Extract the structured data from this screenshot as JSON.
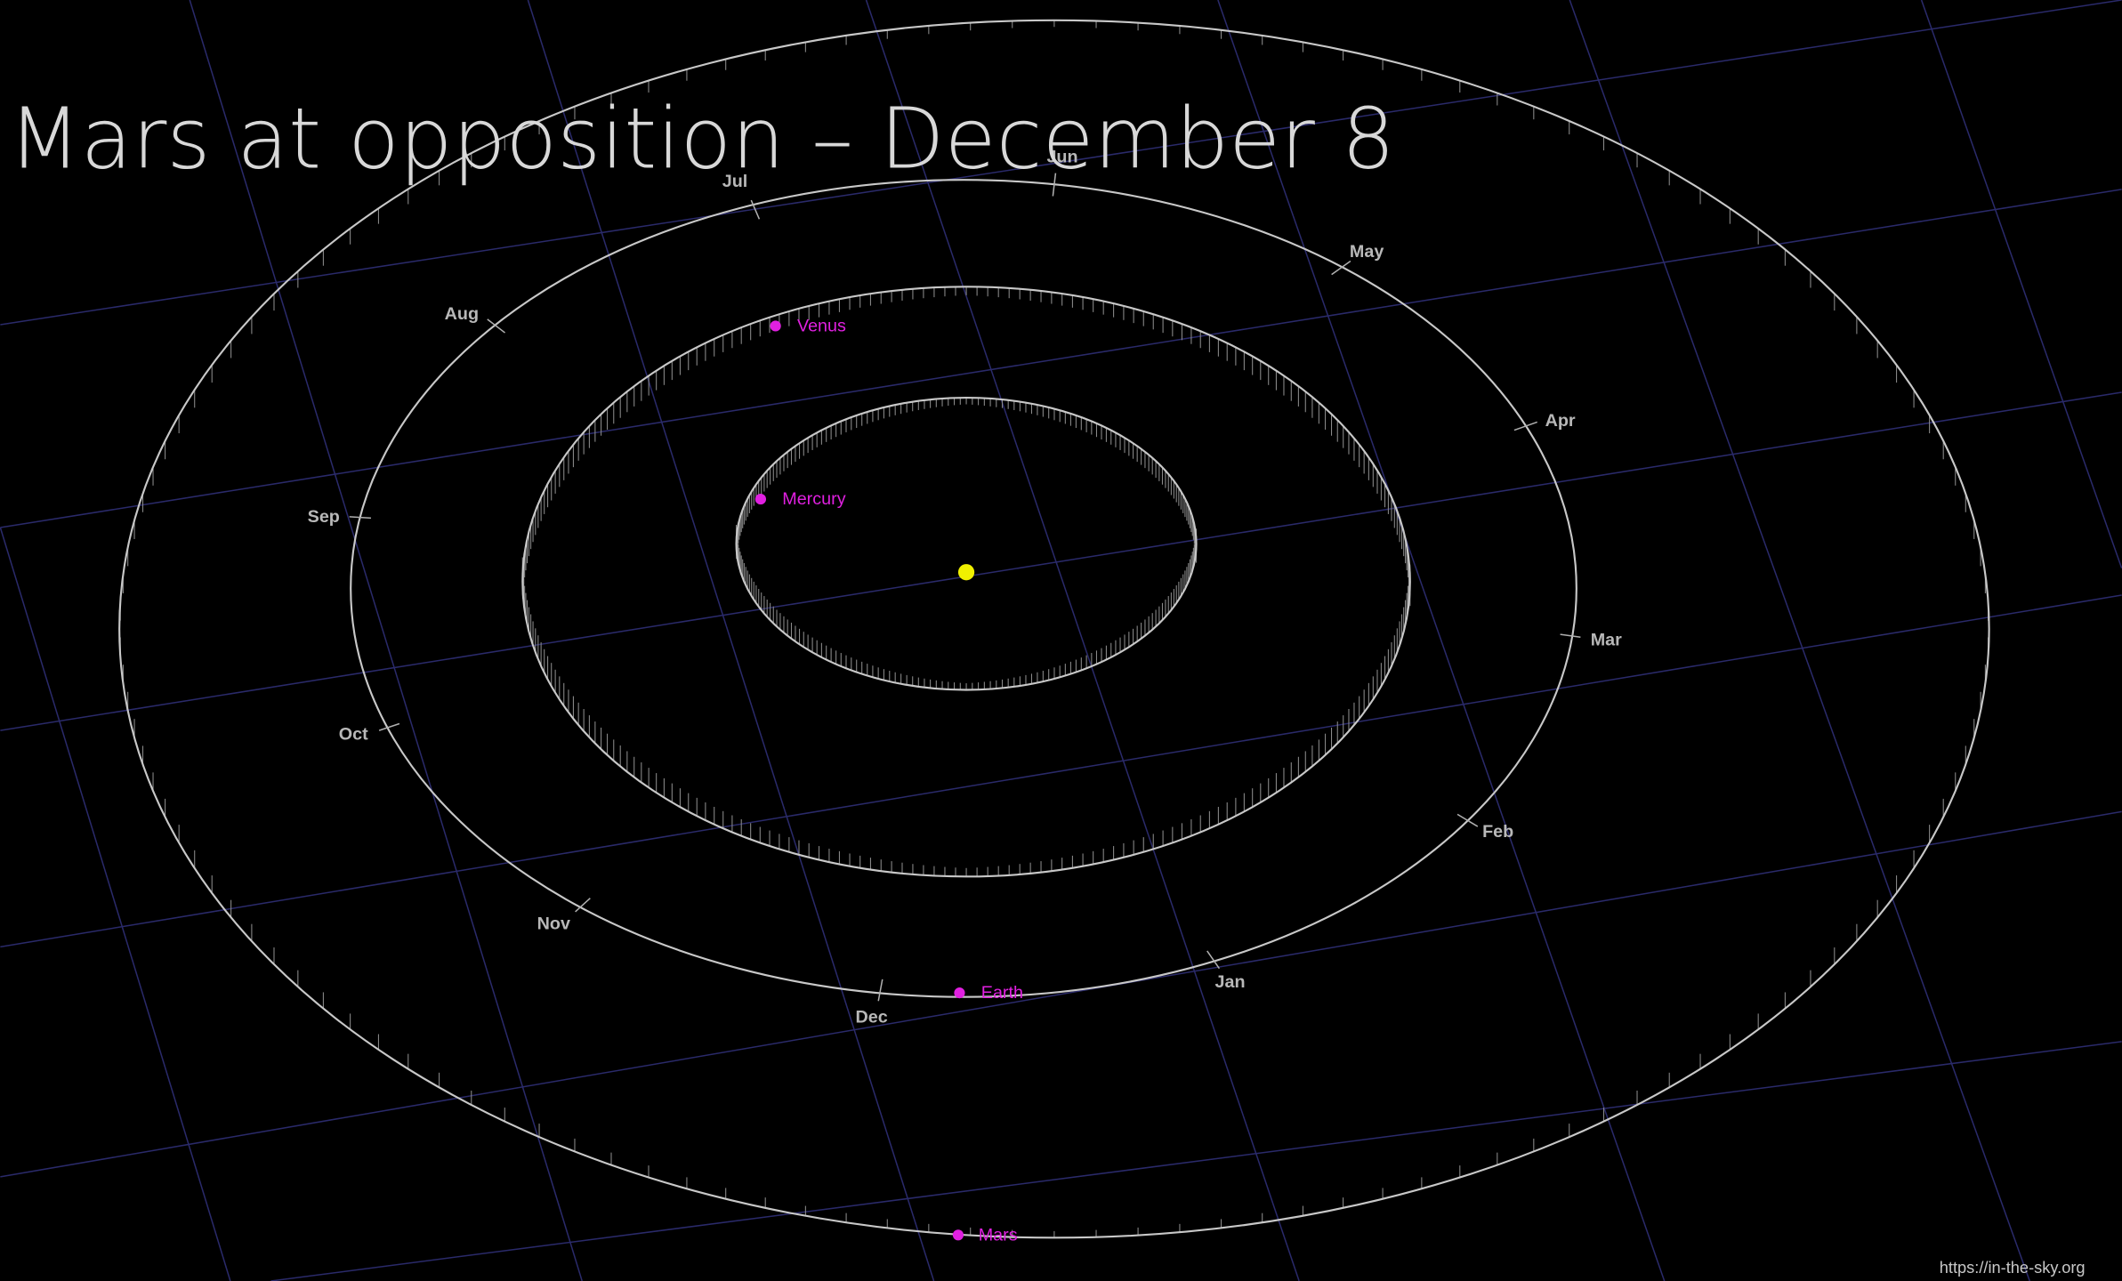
{
  "title": "Mars at opposition – December 8",
  "months": [
    "Jul",
    "Jun",
    "May",
    "Apr",
    "Mar",
    "Feb",
    "Jan",
    "Dec",
    "Nov",
    "Oct",
    "Sep",
    "Aug"
  ],
  "planets": [
    "Venus",
    "Mercury",
    "Earth",
    "Mars"
  ],
  "credit": "https://in-the-sky.org"
}
